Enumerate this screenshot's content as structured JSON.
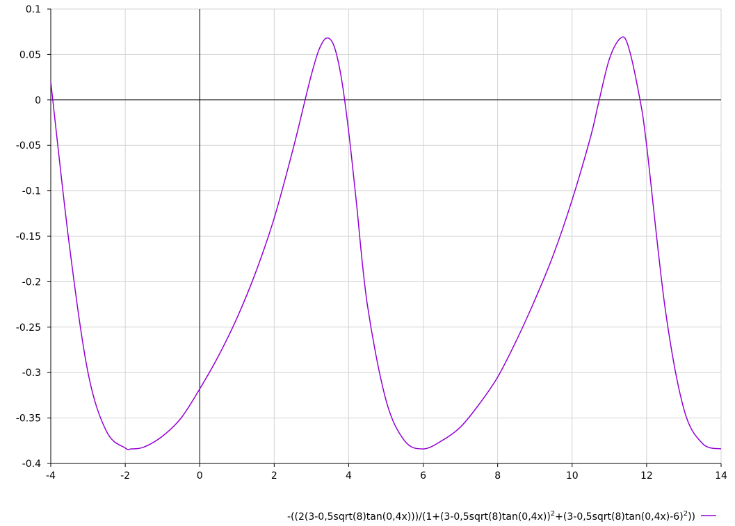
{
  "chart_data": {
    "type": "line",
    "xlim": [
      -4,
      14
    ],
    "ylim": [
      -0.4,
      0.1
    ],
    "x_ticks": [
      -4,
      -2,
      0,
      2,
      4,
      6,
      8,
      10,
      12,
      14
    ],
    "y_ticks": [
      0.1,
      0.05,
      0,
      -0.05,
      -0.1,
      -0.15,
      -0.2,
      -0.25,
      -0.3,
      -0.35,
      -0.4
    ],
    "x_tick_labels": [
      "-4",
      "-2",
      "0",
      "2",
      "4",
      "6",
      "8",
      "10",
      "12",
      "14"
    ],
    "y_tick_labels": [
      "0.1",
      "0.05",
      "0",
      "-0.05",
      "-0.1",
      "-0.15",
      "-0.2",
      "-0.25",
      "-0.3",
      "-0.35",
      "-0.4"
    ],
    "grid": true,
    "legend_position": "bottom-right",
    "series": [
      {
        "name": "-((2(3-0,5sqrt(8)tan(0,4x)))/(1+(3-0,5sqrt(8)tan(0,4x))^2+(3-0,5sqrt(8)tan(0,4x)-6)^2))",
        "name_parts": {
          "part1": "-((2(3-0,5sqrt(8)tan(0,4x)))/(1+(3-0,5sqrt(8)tan(0,4x))",
          "sup1": "2",
          "part2": "+(3-0,5sqrt(8)tan(0,4x)-6)",
          "sup2": "2",
          "part3": "))"
        },
        "color": "#9400d3",
        "x": [
          -4,
          -3.5,
          -3,
          -2.5,
          -2,
          -1.85,
          -1.5,
          -1,
          -0.5,
          0,
          0.5,
          1,
          1.5,
          2,
          2.5,
          2.8,
          3,
          3.2,
          3.4,
          3.6,
          3.8,
          4,
          4.2,
          4.5,
          5,
          5.5,
          6,
          6.5,
          7,
          7.5,
          8,
          8.5,
          9,
          9.5,
          10,
          10.5,
          10.7,
          11,
          11.3,
          11.5,
          11.8,
          12,
          12.5,
          13,
          13.5,
          14
        ],
        "y": [
          0.02,
          -0.16,
          -0.3,
          -0.365,
          -0.383,
          -0.384,
          -0.382,
          -0.37,
          -0.35,
          -0.318,
          -0.282,
          -0.24,
          -0.19,
          -0.13,
          -0.055,
          -0.005,
          0.028,
          0.055,
          0.068,
          0.06,
          0.025,
          -0.035,
          -0.11,
          -0.225,
          -0.33,
          -0.375,
          -0.384,
          -0.375,
          -0.36,
          -0.335,
          -0.305,
          -0.265,
          -0.22,
          -0.17,
          -0.11,
          -0.04,
          -0.005,
          0.045,
          0.068,
          0.06,
          0.005,
          -0.05,
          -0.23,
          -0.34,
          -0.378,
          -0.384
        ]
      }
    ]
  }
}
